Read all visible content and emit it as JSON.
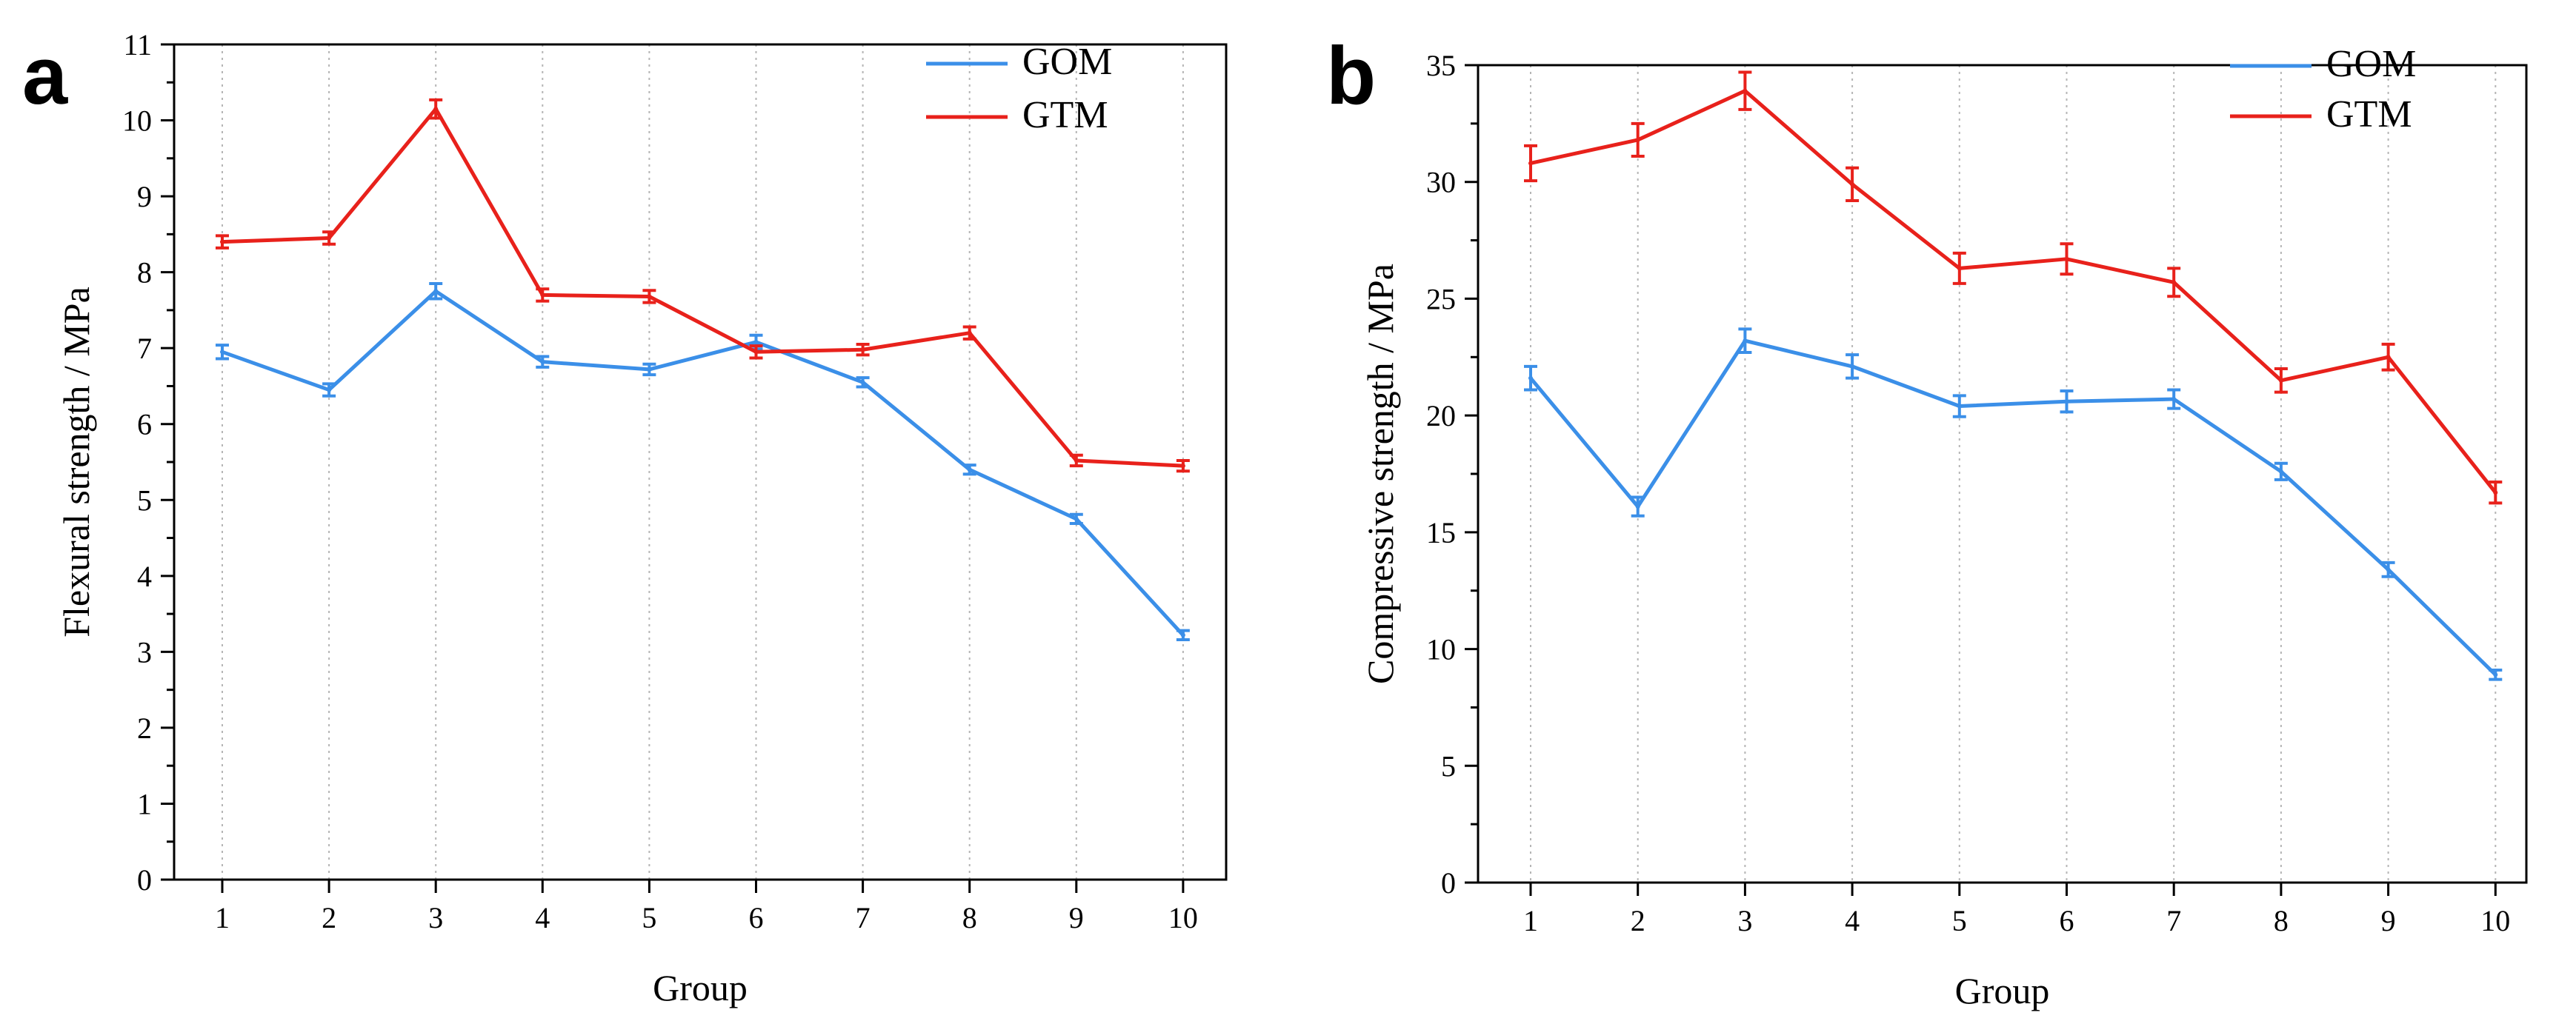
{
  "chart_data": [
    {
      "type": "line",
      "panel_label": "a",
      "xlabel": "Group",
      "ylabel": "Flexural strength / MPa",
      "categories": [
        "1",
        "2",
        "3",
        "4",
        "5",
        "6",
        "7",
        "8",
        "9",
        "10"
      ],
      "ylim": [
        0,
        11
      ],
      "yticks": [
        "0",
        "1",
        "2",
        "3",
        "4",
        "5",
        "6",
        "7",
        "8",
        "9",
        "10",
        "11"
      ],
      "grid": "vertical dotted",
      "legend_position": "top-right",
      "series": [
        {
          "name": "GOM",
          "color": "#3b8fe8",
          "values": [
            6.95,
            6.45,
            7.75,
            6.82,
            6.72,
            7.08,
            6.55,
            5.4,
            4.75,
            3.22
          ],
          "errors": [
            0.09,
            0.08,
            0.1,
            0.07,
            0.07,
            0.09,
            0.06,
            0.06,
            0.06,
            0.06
          ]
        },
        {
          "name": "GTM",
          "color": "#e8211b",
          "values": [
            8.4,
            8.45,
            10.15,
            7.7,
            7.68,
            6.95,
            6.98,
            7.2,
            5.52,
            5.45
          ],
          "errors": [
            0.08,
            0.08,
            0.12,
            0.08,
            0.08,
            0.08,
            0.07,
            0.08,
            0.07,
            0.07
          ]
        }
      ]
    },
    {
      "type": "line",
      "panel_label": "b",
      "xlabel": "Group",
      "ylabel": "Compressive strength / MPa",
      "categories": [
        "1",
        "2",
        "3",
        "4",
        "5",
        "6",
        "7",
        "8",
        "9",
        "10"
      ],
      "ylim": [
        0,
        35
      ],
      "yticks": [
        "0",
        "5",
        "10",
        "15",
        "20",
        "25",
        "30",
        "35"
      ],
      "grid": "vertical dotted",
      "legend_position": "top-right",
      "series": [
        {
          "name": "GOM",
          "color": "#3b8fe8",
          "values": [
            21.6,
            16.1,
            23.2,
            22.1,
            20.4,
            20.6,
            20.7,
            17.6,
            13.4,
            8.9
          ],
          "errors": [
            0.5,
            0.4,
            0.5,
            0.5,
            0.45,
            0.45,
            0.4,
            0.35,
            0.3,
            0.2
          ]
        },
        {
          "name": "GTM",
          "color": "#e8211b",
          "values": [
            30.8,
            31.8,
            33.9,
            29.9,
            26.3,
            26.7,
            25.7,
            21.5,
            22.5,
            16.7
          ],
          "errors": [
            0.75,
            0.7,
            0.8,
            0.7,
            0.65,
            0.65,
            0.6,
            0.5,
            0.55,
            0.45
          ]
        }
      ]
    }
  ]
}
